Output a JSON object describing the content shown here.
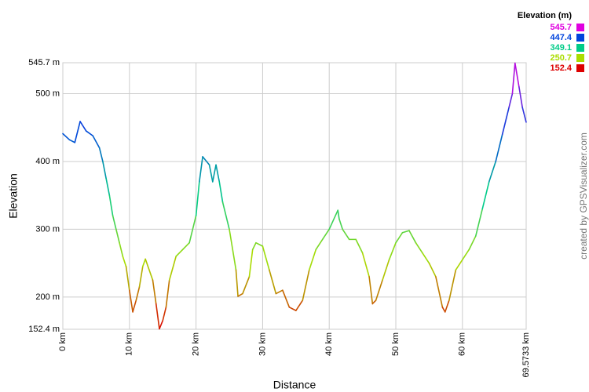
{
  "chart_data": {
    "type": "line",
    "x_label": "Distance",
    "y_label": "Elevation",
    "credit": "created by GPSVisualizer.com",
    "xlim": [
      0,
      69.5733
    ],
    "ylim": [
      152.4,
      545.7
    ],
    "grid": true,
    "xticks": [
      {
        "value": 0,
        "label": "0 km"
      },
      {
        "value": 10,
        "label": "10 km"
      },
      {
        "value": 20,
        "label": "20 km"
      },
      {
        "value": 30,
        "label": "30 km"
      },
      {
        "value": 40,
        "label": "40 km"
      },
      {
        "value": 50,
        "label": "50 km"
      },
      {
        "value": 60,
        "label": "60 km"
      },
      {
        "value": 69.5733,
        "label": "69.5733 km"
      }
    ],
    "yticks": [
      {
        "value": 152.4,
        "label": "152.4 m"
      },
      {
        "value": 200,
        "label": "200 m"
      },
      {
        "value": 300,
        "label": "300 m"
      },
      {
        "value": 400,
        "label": "400 m"
      },
      {
        "value": 500,
        "label": "500 m"
      },
      {
        "value": 545.7,
        "label": "545.7 m"
      }
    ],
    "legend": {
      "title": "Elevation (m)",
      "position": "top-right",
      "items": [
        {
          "value": 545.7,
          "color": "#e000e0"
        },
        {
          "value": 447.4,
          "color": "#0044dd"
        },
        {
          "value": 349.1,
          "color": "#00cc88"
        },
        {
          "value": 250.7,
          "color": "#aadd00"
        },
        {
          "value": 152.4,
          "color": "#dd0000"
        }
      ]
    },
    "x": [
      0,
      1,
      1.8,
      2.6,
      3.5,
      4.5,
      5.5,
      6,
      6.5,
      7,
      7.5,
      8,
      8.5,
      9,
      9.5,
      10,
      10.5,
      11,
      11.5,
      12,
      12.4,
      13.5,
      14,
      14.5,
      15,
      15.5,
      16,
      17,
      18,
      19,
      20,
      20.5,
      21,
      22,
      22.5,
      23,
      23.5,
      24,
      25,
      26,
      26.3,
      27,
      28,
      28.5,
      29,
      30,
      31,
      32,
      33,
      34,
      35,
      36,
      37,
      38,
      39,
      40,
      41.3,
      41.5,
      42,
      43,
      44,
      45,
      46,
      46.5,
      47,
      48,
      49,
      50,
      51,
      52,
      53,
      54,
      55,
      56,
      57,
      57.4,
      58,
      59,
      60,
      61,
      62,
      63,
      64,
      65,
      66,
      67,
      67.5,
      67.9,
      68.5,
      69,
      69.5733
    ],
    "values": [
      441,
      432,
      428,
      459,
      445,
      438,
      420,
      400,
      375,
      350,
      320,
      300,
      280,
      260,
      245,
      210,
      178,
      195,
      215,
      245,
      256,
      225,
      190,
      153,
      165,
      185,
      225,
      260,
      270,
      280,
      320,
      370,
      407,
      395,
      370,
      395,
      370,
      340,
      300,
      240,
      201,
      205,
      230,
      270,
      280,
      275,
      240,
      205,
      210,
      185,
      180,
      195,
      240,
      270,
      285,
      300,
      328,
      315,
      300,
      285,
      285,
      265,
      230,
      190,
      195,
      225,
      255,
      280,
      295,
      298,
      280,
      265,
      250,
      230,
      185,
      178,
      195,
      240,
      255,
      270,
      290,
      330,
      370,
      400,
      440,
      480,
      500,
      545,
      510,
      480,
      458
    ]
  }
}
